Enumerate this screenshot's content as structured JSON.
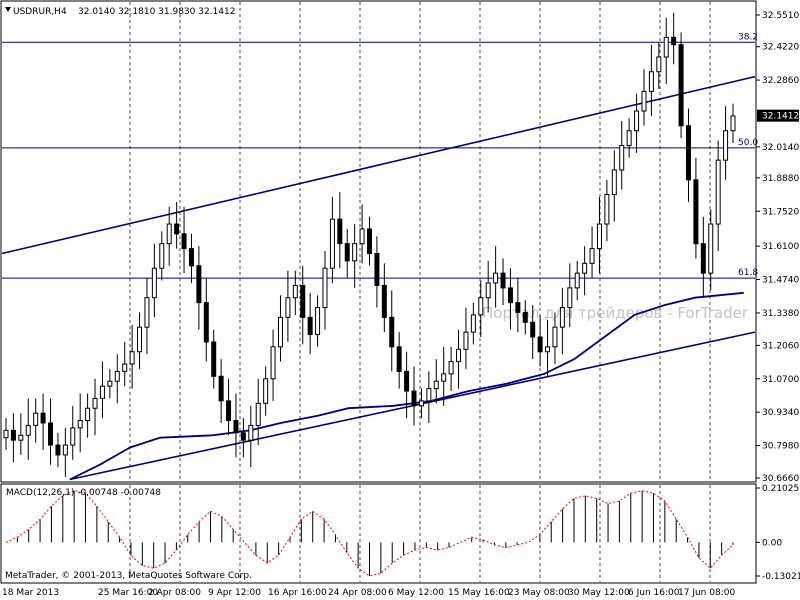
{
  "header": {
    "symbol_timeframe": "USDRUR,H4",
    "ohlc": "32.0140 32.1810 31.9830 32.1412"
  },
  "watermark": "Портал для трейдеров - ForTrader",
  "copyright": "MetaTrader, © 2001-2013, MetaQuotes Software Corp.",
  "colors": {
    "candle": "#000000",
    "trendline": "#000080",
    "moving_average": "#000080",
    "macd_histogram": "#000000",
    "macd_signal": "#ff0000",
    "grid": "#000000",
    "current_price_tag_bg": "#000000",
    "current_price_tag_fg": "#ffffff"
  },
  "chart_data": [
    {
      "type": "candlestick",
      "title": "USDRUR,H4",
      "ylim": [
        30.66,
        32.55
      ],
      "price_ticks": [
        "32.5510",
        "32.4220",
        "32.2860",
        "32.1412",
        "32.0140",
        "31.8880",
        "31.7520",
        "31.6100",
        "31.4740",
        "31.3380",
        "31.2060",
        "31.0700",
        "30.9340",
        "30.7980",
        "30.6660"
      ],
      "current_price": "32.1412",
      "x_labels": [
        "18 Mar 2013",
        "25 Mar 16:00",
        "2 Apr 08:00",
        "9 Apr 12:00",
        "16 Apr 16:00",
        "24 Apr 08:00",
        "6 May 12:00",
        "15 May 16:00",
        "23 May 08:00",
        "30 May 12:00",
        "6 Jun 16:00",
        "17 Jun 08:00"
      ],
      "fib_levels": [
        {
          "label": "38.2",
          "price": 32.44
        },
        {
          "label": "50.0",
          "price": 32.01
        },
        {
          "label": "61.8",
          "price": 31.48
        }
      ],
      "closes": [
        30.86,
        30.82,
        30.84,
        30.88,
        30.93,
        30.89,
        30.8,
        30.76,
        30.8,
        30.87,
        30.9,
        30.95,
        30.99,
        31.04,
        31.06,
        31.1,
        31.13,
        31.18,
        31.28,
        31.4,
        31.52,
        31.62,
        31.7,
        31.66,
        31.6,
        31.53,
        31.38,
        31.22,
        31.08,
        30.98,
        30.9,
        30.85,
        30.82,
        30.88,
        30.97,
        31.07,
        31.2,
        31.32,
        31.4,
        31.45,
        31.32,
        31.25,
        31.36,
        31.52,
        31.72,
        31.62,
        31.55,
        31.62,
        31.68,
        31.58,
        31.45,
        31.32,
        31.2,
        31.1,
        31.02,
        30.96,
        30.98,
        31.03,
        31.06,
        31.09,
        31.14,
        31.19,
        31.26,
        31.33,
        31.4,
        31.46,
        31.5,
        31.44,
        31.38,
        31.34,
        31.3,
        31.24,
        31.18,
        31.2,
        31.28,
        31.36,
        31.44,
        31.5,
        31.54,
        31.6,
        31.7,
        31.82,
        31.92,
        32.02,
        32.08,
        32.16,
        32.24,
        32.32,
        32.38,
        32.46,
        32.43,
        32.1,
        31.88,
        31.62,
        31.5,
        31.7,
        31.96,
        32.08,
        32.14
      ],
      "moving_average": [
        {
          "x": 0.09,
          "y": 30.66
        },
        {
          "x": 0.13,
          "y": 30.72
        },
        {
          "x": 0.17,
          "y": 30.79
        },
        {
          "x": 0.21,
          "y": 30.83
        },
        {
          "x": 0.28,
          "y": 30.84
        },
        {
          "x": 0.33,
          "y": 30.86
        },
        {
          "x": 0.37,
          "y": 30.89
        },
        {
          "x": 0.42,
          "y": 30.92
        },
        {
          "x": 0.46,
          "y": 30.95
        },
        {
          "x": 0.52,
          "y": 30.96
        },
        {
          "x": 0.57,
          "y": 30.98
        },
        {
          "x": 0.62,
          "y": 31.02
        },
        {
          "x": 0.67,
          "y": 31.05
        },
        {
          "x": 0.72,
          "y": 31.09
        },
        {
          "x": 0.76,
          "y": 31.15
        },
        {
          "x": 0.8,
          "y": 31.24
        },
        {
          "x": 0.84,
          "y": 31.33
        },
        {
          "x": 0.88,
          "y": 31.37
        },
        {
          "x": 0.92,
          "y": 31.4
        },
        {
          "x": 0.985,
          "y": 31.42
        }
      ],
      "trendlines": [
        {
          "from": {
            "x": 0.0,
            "y": 31.58
          },
          "to": {
            "x": 1.0,
            "y": 32.3
          }
        },
        {
          "from": {
            "x": 0.09,
            "y": 30.66
          },
          "to": {
            "x": 1.0,
            "y": 31.26
          }
        }
      ]
    },
    {
      "type": "bar",
      "title": "MACD(12,26,1) -0.00748 -0.00748",
      "ylim": [
        -0.13021,
        0.21025
      ],
      "ticks": [
        "0.21025",
        "0.00",
        "-0.13021"
      ],
      "histogram": [
        0.0,
        0.02,
        0.05,
        0.09,
        0.14,
        0.18,
        0.2,
        0.19,
        0.14,
        0.08,
        0.02,
        -0.05,
        -0.09,
        -0.1,
        -0.08,
        -0.03,
        0.03,
        0.08,
        0.12,
        0.1,
        0.05,
        0.0,
        -0.05,
        -0.08,
        -0.05,
        0.02,
        0.09,
        0.12,
        0.09,
        0.03,
        -0.04,
        -0.1,
        -0.13,
        -0.12,
        -0.08,
        -0.05,
        -0.03,
        -0.02,
        -0.03,
        -0.02,
        0.0,
        0.02,
        0.01,
        -0.01,
        -0.02,
        -0.01,
        0.0,
        0.03,
        0.08,
        0.13,
        0.17,
        0.18,
        0.17,
        0.15,
        0.16,
        0.19,
        0.2,
        0.19,
        0.16,
        0.09,
        0.02,
        -0.06,
        -0.1,
        -0.05,
        -0.01
      ]
    }
  ]
}
